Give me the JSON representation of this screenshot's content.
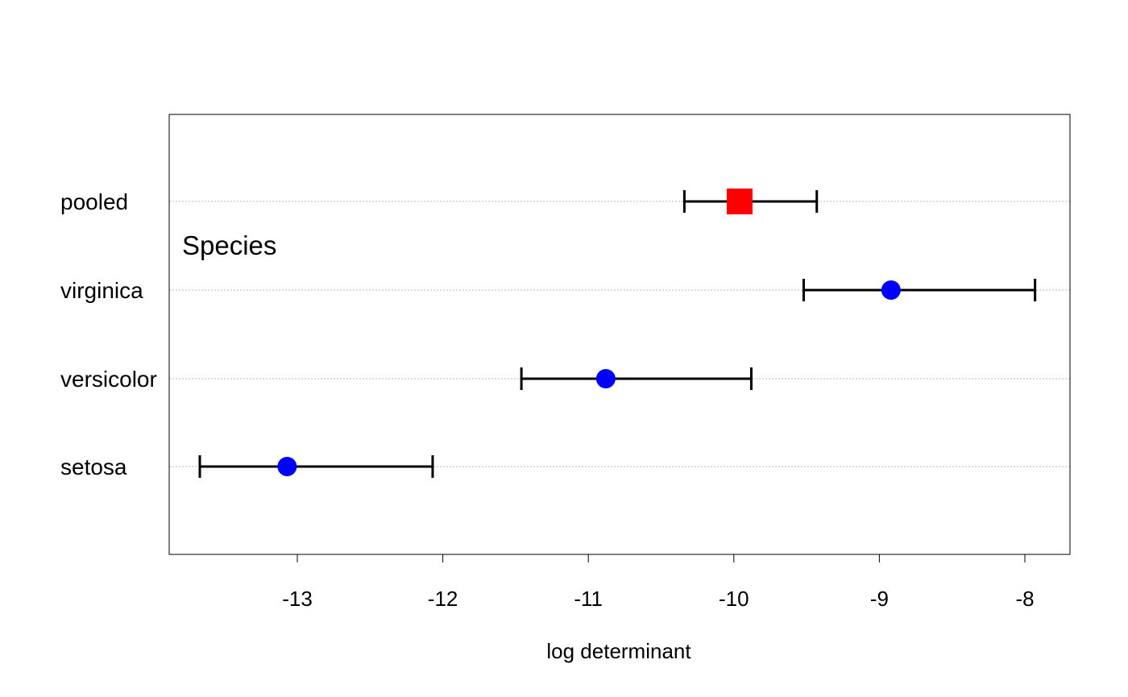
{
  "chart_data": {
    "type": "scatter",
    "title": "",
    "xlabel": "log determinant",
    "ylabel": "",
    "annotation": "Species",
    "xlim": [
      -13.9,
      -7.7
    ],
    "xticks": [
      "-13",
      "-12",
      "-11",
      "-10",
      "-9",
      "-8"
    ],
    "grid": "horizontal-dotted",
    "categories": [
      "pooled",
      "virginica",
      "versicolor",
      "setosa"
    ],
    "points": [
      {
        "label": "pooled",
        "value": -9.96,
        "lower": -10.34,
        "upper": -9.43,
        "marker": "square",
        "color": "#ff0000"
      },
      {
        "label": "virginica",
        "value": -8.92,
        "lower": -9.52,
        "upper": -7.93,
        "marker": "circle",
        "color": "#0000ff"
      },
      {
        "label": "versicolor",
        "value": -10.88,
        "lower": -11.46,
        "upper": -9.88,
        "marker": "circle",
        "color": "#0000ff"
      },
      {
        "label": "setosa",
        "value": -13.07,
        "lower": -13.67,
        "upper": -12.07,
        "marker": "circle",
        "color": "#0000ff"
      }
    ]
  }
}
